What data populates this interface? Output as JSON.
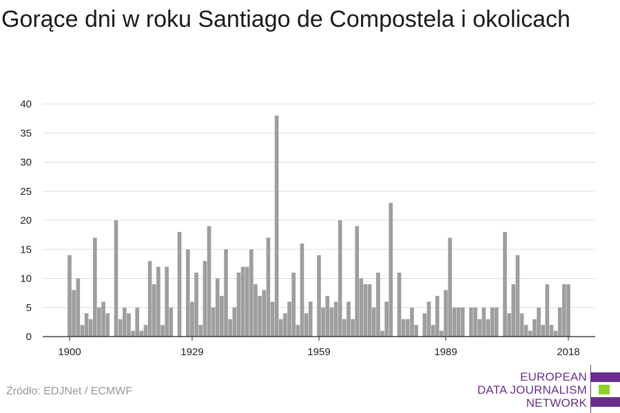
{
  "title": "Gorące dni w roku Santiago de Compostela i okolicach",
  "source": "Źródło: EDJNet / ECMWF",
  "logo": {
    "lines": [
      "EUROPEAN",
      "DATA JOURNALISM",
      "NETWORK"
    ],
    "colors": {
      "purple": "#6a2f8c",
      "green": "#8ed12f"
    }
  },
  "chart_data": {
    "type": "bar",
    "title": "Gorące dni w roku Santiago de Compostela i okolicach",
    "xlabel": "",
    "ylabel": "",
    "x_start": 1900,
    "x_end": 2018,
    "x_ticks": [
      1900,
      1929,
      1959,
      1989,
      2018
    ],
    "y_ticks": [
      0,
      5,
      10,
      15,
      20,
      25,
      30,
      35,
      40
    ],
    "ylim": [
      0,
      40
    ],
    "grid": true,
    "bar_color": "#9e9e9e",
    "values": [
      14,
      8,
      10,
      2,
      4,
      3,
      17,
      5,
      6,
      4,
      0,
      20,
      3,
      5,
      4,
      1,
      5,
      1,
      2,
      13,
      9,
      12,
      2,
      12,
      5,
      0,
      18,
      0,
      15,
      6,
      11,
      2,
      13,
      19,
      5,
      10,
      7,
      15,
      3,
      5,
      11,
      12,
      12,
      15,
      9,
      7,
      8,
      17,
      6,
      38,
      3,
      4,
      6,
      11,
      2,
      16,
      4,
      6,
      0,
      14,
      5,
      7,
      5,
      6,
      20,
      3,
      6,
      3,
      19,
      10,
      9,
      9,
      5,
      11,
      1,
      6,
      23,
      0,
      11,
      3,
      3,
      5,
      2,
      0,
      4,
      6,
      2,
      7,
      1,
      8,
      17,
      5,
      5,
      5,
      0,
      5,
      5,
      3,
      5,
      3,
      5,
      5,
      0,
      18,
      4,
      9,
      14,
      4,
      2,
      1,
      3,
      5,
      2,
      9,
      2,
      1,
      5,
      9,
      9
    ]
  }
}
